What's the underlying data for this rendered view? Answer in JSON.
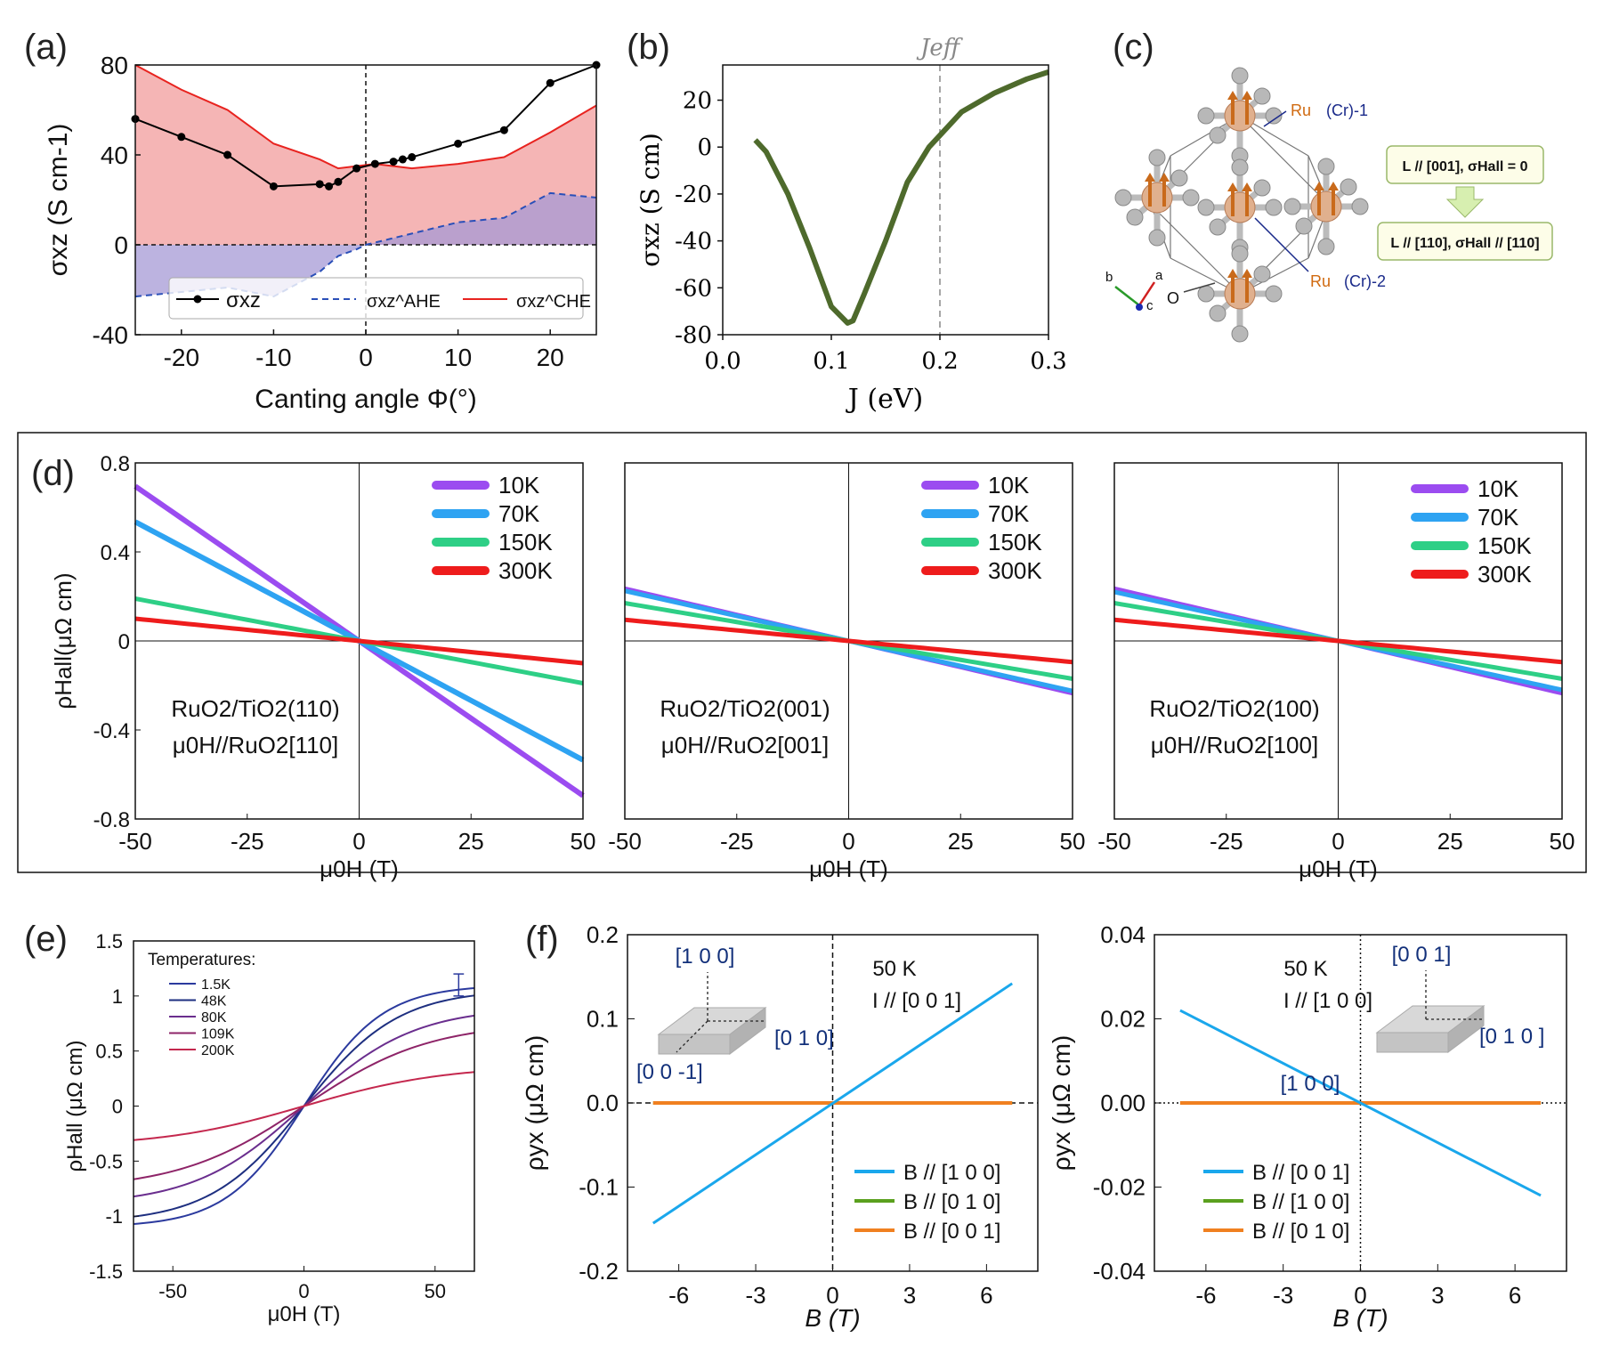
{
  "chart_data": [
    {
      "panel": "(a)",
      "type": "line",
      "xlabel": "Canting angle Φ(°)",
      "ylabel": "σxz (S cm-1)",
      "xlim": [
        -25,
        25
      ],
      "ylim": [
        -40,
        80
      ],
      "xticks": [
        -20,
        -10,
        0,
        10,
        20
      ],
      "yticks": [
        -40,
        0,
        40,
        80
      ],
      "series": [
        {
          "name": "σxz",
          "style": "black-dots",
          "x": [
            -25,
            -20,
            -15,
            -10,
            -5,
            -4,
            -3,
            -1,
            1,
            3,
            4,
            5,
            10,
            15,
            20,
            25
          ],
          "y": [
            56,
            48,
            40,
            26,
            27,
            26,
            28,
            34,
            36,
            37,
            38,
            39,
            45,
            51,
            72,
            80
          ]
        },
        {
          "name": "σxz^AHE",
          "style": "blue-dashed",
          "x": [
            -25,
            -20,
            -15,
            -10,
            -5,
            -3,
            -1,
            0,
            3,
            5,
            10,
            15,
            20,
            25
          ],
          "y": [
            -23,
            -21,
            -19,
            -23,
            -12,
            -5,
            -2,
            0,
            3,
            5,
            10,
            12,
            23,
            21
          ]
        },
        {
          "name": "σxz^CHE",
          "style": "red",
          "x": [
            -25,
            -20,
            -15,
            -10,
            -5,
            -3,
            -1,
            1,
            3,
            5,
            10,
            15,
            20,
            25
          ],
          "y": [
            80,
            69,
            60,
            45,
            38,
            34,
            35,
            36,
            35,
            34,
            36,
            39,
            50,
            62
          ]
        }
      ]
    },
    {
      "panel": "(b)",
      "type": "line",
      "xlabel": "J (eV)",
      "ylabel": "σxz (S cm)",
      "annotation": "Jeff",
      "vline": 0.2,
      "xlim": [
        0.0,
        0.3
      ],
      "ylim": [
        -80,
        35
      ],
      "xticks": [
        "0.0",
        "0.1",
        "0.2",
        "0.3"
      ],
      "yticks": [
        -80,
        -60,
        -40,
        -20,
        0,
        20
      ],
      "series": [
        {
          "name": "σxz(J)",
          "x": [
            0.03,
            0.04,
            0.06,
            0.08,
            0.1,
            0.115,
            0.12,
            0.13,
            0.15,
            0.17,
            0.19,
            0.2,
            0.22,
            0.25,
            0.28,
            0.3
          ],
          "y": [
            3,
            -2,
            -20,
            -43,
            -68,
            -75,
            -74,
            -63,
            -40,
            -15,
            0,
            5,
            15,
            23,
            29,
            32
          ]
        }
      ]
    },
    {
      "panel": "(d)",
      "type": "line",
      "xlabel": "μ0H (T)",
      "ylabel": "ρHall(μΩ cm)",
      "xlim": [
        -50,
        50
      ],
      "ylim": [
        -0.8,
        0.8
      ],
      "xticks": [
        -50,
        -25,
        0,
        25,
        50
      ],
      "yticks": [
        "-0.8",
        "-0.4",
        "0",
        "0.4",
        "0.8"
      ],
      "subplots": [
        {
          "label1": "RuO2/TiO2(110)",
          "label2": "μ0H//RuO2[110]",
          "series": [
            {
              "name": "10K",
              "slope": -0.0139,
              "curv": 0
            },
            {
              "name": "70K",
              "slope": -0.0107,
              "curv": 0
            },
            {
              "name": "150K",
              "slope": -0.0038,
              "curv": 0
            },
            {
              "name": "300K",
              "slope": -0.002,
              "curv": 0
            }
          ]
        },
        {
          "label1": "RuO2/TiO2(001)",
          "label2": "μ0H//RuO2[001]",
          "series": [
            {
              "name": "10K",
              "slope": -0.0047,
              "curv": 0
            },
            {
              "name": "70K",
              "slope": -0.0045,
              "curv": 0
            },
            {
              "name": "150K",
              "slope": -0.0034,
              "curv": 0
            },
            {
              "name": "300K",
              "slope": -0.0019,
              "curv": 0
            }
          ]
        },
        {
          "label1": "RuO2/TiO2(100)",
          "label2": "μ0H//RuO2[100]",
          "series": [
            {
              "name": "10K",
              "slope": -0.0047,
              "curv": 0
            },
            {
              "name": "70K",
              "slope": -0.0044,
              "curv": 0
            },
            {
              "name": "150K",
              "slope": -0.0034,
              "curv": 0
            },
            {
              "name": "300K",
              "slope": -0.0019,
              "curv": 0
            }
          ]
        }
      ],
      "legend": [
        "10K",
        "70K",
        "150K",
        "300K"
      ]
    },
    {
      "panel": "(e)",
      "type": "line",
      "xlabel": "μ0H (T)",
      "ylabel": "ρHall (μΩ cm)",
      "legend_title": "Temperatures:",
      "xlim": [
        -65,
        65
      ],
      "ylim": [
        -1.5,
        1.5
      ],
      "xticks": [
        -50,
        0,
        50
      ],
      "yticks": [
        "-1.5",
        "-1",
        "-0.5",
        "0",
        "0.5",
        "1",
        "1.5"
      ],
      "series": [
        {
          "name": "1.5K",
          "sat": 1.1
        },
        {
          "name": "48K",
          "sat": 1.06
        },
        {
          "name": "80K",
          "sat": 0.9
        },
        {
          "name": "109K",
          "sat": 0.76
        },
        {
          "name": "200K",
          "sat": 0.37
        }
      ]
    },
    {
      "panel": "(f)-left",
      "type": "line",
      "xlabel": "B (T)",
      "ylabel": "ρyx (μΩ cm)",
      "title": "50 K",
      "subtitle": "I // [0 0 1]",
      "xlim": [
        -8,
        8
      ],
      "ylim": [
        -0.2,
        0.2
      ],
      "xticks": [
        -6,
        -3,
        0,
        3,
        6
      ],
      "yticks": [
        "-0.2",
        "-0.1",
        "0.0",
        "0.1",
        "0.2"
      ],
      "series": [
        {
          "name": "B // [1 0 0]",
          "x": [
            -7,
            7
          ],
          "y": [
            -0.143,
            0.142
          ]
        },
        {
          "name": "B // [0 1 0]",
          "x": [
            -7,
            7
          ],
          "y": [
            0,
            0
          ]
        },
        {
          "name": "B // [0 0 1]",
          "x": [
            -7,
            7
          ],
          "y": [
            0,
            0
          ]
        }
      ],
      "inset_labels": [
        "[1 0 0]",
        "[0 1 0]",
        "[0 0 -1]"
      ]
    },
    {
      "panel": "(f)-right",
      "type": "line",
      "xlabel": "B (T)",
      "ylabel": "ρyx (μΩ cm)",
      "title": "50 K",
      "subtitle": "I // [1 0 0]",
      "xlim": [
        -8,
        8
      ],
      "ylim": [
        -0.04,
        0.04
      ],
      "xticks": [
        -6,
        -3,
        0,
        3,
        6
      ],
      "yticks": [
        "-0.04",
        "-0.02",
        "0.00",
        "0.02",
        "0.04"
      ],
      "series": [
        {
          "name": "B // [0 0 1]",
          "x": [
            -7,
            7
          ],
          "y": [
            0.022,
            -0.022
          ]
        },
        {
          "name": "B // [1 0 0]",
          "x": [
            -7,
            7
          ],
          "y": [
            0,
            0
          ]
        },
        {
          "name": "B // [0 1 0]",
          "x": [
            -7,
            7
          ],
          "y": [
            0,
            0
          ]
        }
      ],
      "inset_labels": [
        "[0 0 1]",
        "[0 1 0 ]",
        "[1 0 0]"
      ]
    }
  ],
  "panel_c": {
    "letter": "(c)",
    "ru1": "Ru",
    "ru1_cr": "(Cr)-1",
    "ru2": "Ru",
    "ru2_cr": "(Cr)-2",
    "o_label": "O",
    "box1": "L // [001], σHall = 0",
    "box2": "L // [110], σHall // [110]",
    "axes": [
      "b",
      "a",
      "c"
    ]
  },
  "colors": {
    "purple": "#9b4cf0",
    "blue": "#2ea3f2",
    "green": "#2ecf86",
    "red": "#ee1c1c",
    "olive": "#4e6a2c",
    "fblue": "#1aa7ec",
    "fgreen": "#5aa01e",
    "forange": "#f08020"
  }
}
